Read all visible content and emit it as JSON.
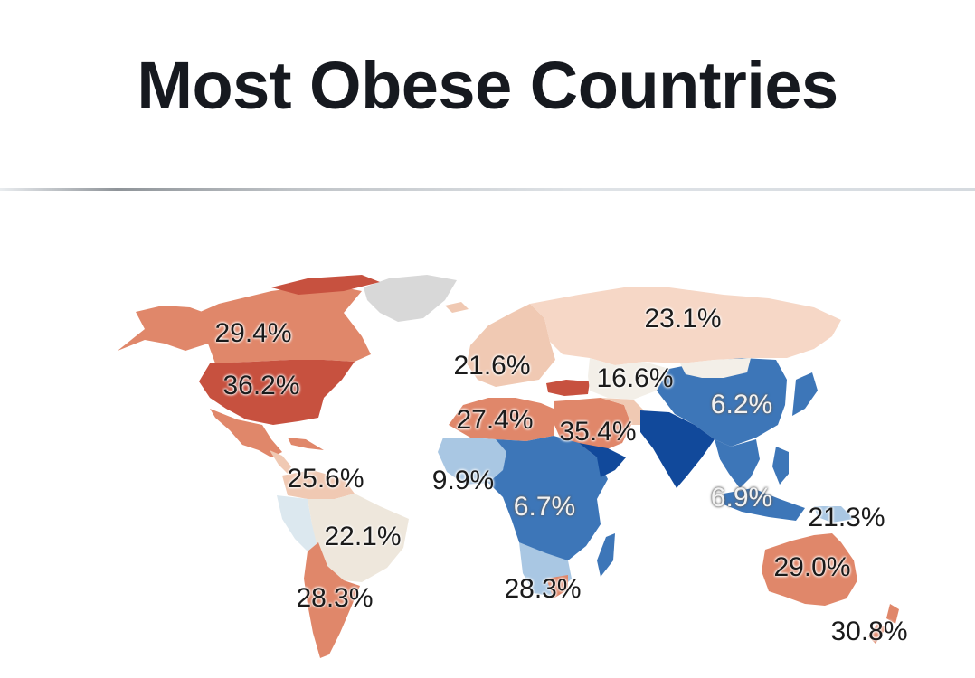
{
  "title": "Most Obese Countries",
  "colors": {
    "high": "#c7513f",
    "mid_high": "#e0876a",
    "mid": "#f0c9b3",
    "neutral": "#eee7dc",
    "low_mid": "#a9c7e3",
    "low": "#3d76b8",
    "lowest": "#11499b",
    "no_data": "#d8d8d8"
  },
  "labels": [
    {
      "name": "canada",
      "text": "29.4%"
    },
    {
      "name": "usa",
      "text": "36.2%"
    },
    {
      "name": "central-america",
      "text": "25.6%"
    },
    {
      "name": "brazil",
      "text": "22.1%"
    },
    {
      "name": "argentina",
      "text": "28.3%"
    },
    {
      "name": "europe",
      "text": "21.6%"
    },
    {
      "name": "russia",
      "text": "23.1%"
    },
    {
      "name": "central-asia",
      "text": "16.6%"
    },
    {
      "name": "china",
      "text": "6.2%"
    },
    {
      "name": "north-africa",
      "text": "27.4%"
    },
    {
      "name": "middle-east",
      "text": "35.4%"
    },
    {
      "name": "west-africa",
      "text": "9.9%"
    },
    {
      "name": "central-africa",
      "text": "6.7%"
    },
    {
      "name": "southeast-asia",
      "text": "6.9%"
    },
    {
      "name": "indonesia-png",
      "text": "21.3%"
    },
    {
      "name": "australia",
      "text": "29.0%"
    },
    {
      "name": "south-africa",
      "text": "28.3%"
    },
    {
      "name": "new-zealand",
      "text": "30.8%"
    }
  ]
}
